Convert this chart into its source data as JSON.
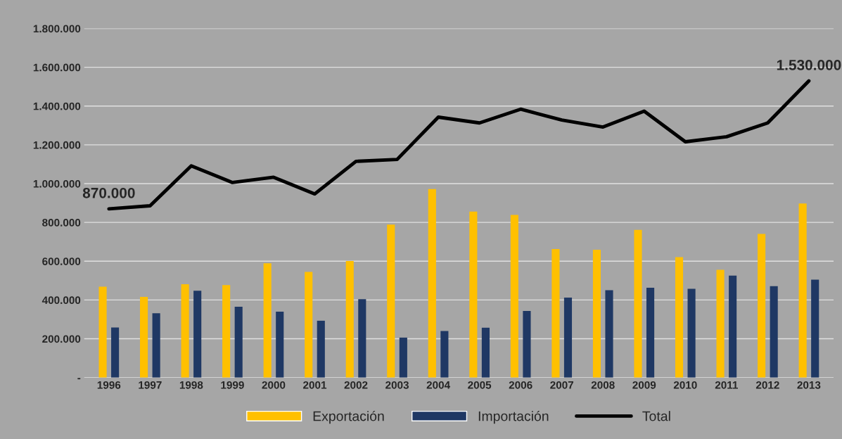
{
  "chart_data": {
    "type": "bar",
    "categories": [
      "1996",
      "1997",
      "1998",
      "1999",
      "2000",
      "2001",
      "2002",
      "2003",
      "2004",
      "2005",
      "2006",
      "2007",
      "2008",
      "2009",
      "2010",
      "2011",
      "2012",
      "2013"
    ],
    "series": [
      {
        "name": "Exportación",
        "color": "#ffc000",
        "values": [
          469000,
          416000,
          481000,
          477000,
          589000,
          545000,
          601000,
          789000,
          972000,
          856000,
          839000,
          663000,
          659000,
          762000,
          621000,
          556000,
          741000,
          898000
        ]
      },
      {
        "name": "Importación",
        "color": "#1f3864",
        "values": [
          258000,
          332000,
          448000,
          365000,
          340000,
          293000,
          404000,
          206000,
          240000,
          257000,
          343000,
          412000,
          450000,
          463000,
          458000,
          526000,
          471000,
          505000
        ]
      },
      {
        "name": "Total",
        "type": "line",
        "color": "#000000",
        "values": [
          870000,
          886000,
          1092000,
          1006000,
          1033000,
          947000,
          1115000,
          1125000,
          1343000,
          1313000,
          1384000,
          1328000,
          1292000,
          1374000,
          1216000,
          1242000,
          1313000,
          1530000
        ],
        "value_labels": [
          "870.000",
          null,
          null,
          null,
          null,
          null,
          null,
          null,
          null,
          null,
          null,
          null,
          null,
          null,
          null,
          null,
          null,
          "1.530.000"
        ]
      }
    ],
    "ylim": [
      0,
      1800000
    ],
    "yticks": [
      {
        "value": 0,
        "label": "-"
      },
      {
        "value": 200000,
        "label": "200.000"
      },
      {
        "value": 400000,
        "label": "400.000"
      },
      {
        "value": 600000,
        "label": "600.000"
      },
      {
        "value": 800000,
        "label": "800.000"
      },
      {
        "value": 1000000,
        "label": "1.000.000"
      },
      {
        "value": 1200000,
        "label": "1.200.000"
      },
      {
        "value": 1400000,
        "label": "1.400.000"
      },
      {
        "value": 1600000,
        "label": "1.600.000"
      },
      {
        "value": 1800000,
        "label": "1.800.000"
      }
    ],
    "grid": "y",
    "legend": "bottom"
  }
}
